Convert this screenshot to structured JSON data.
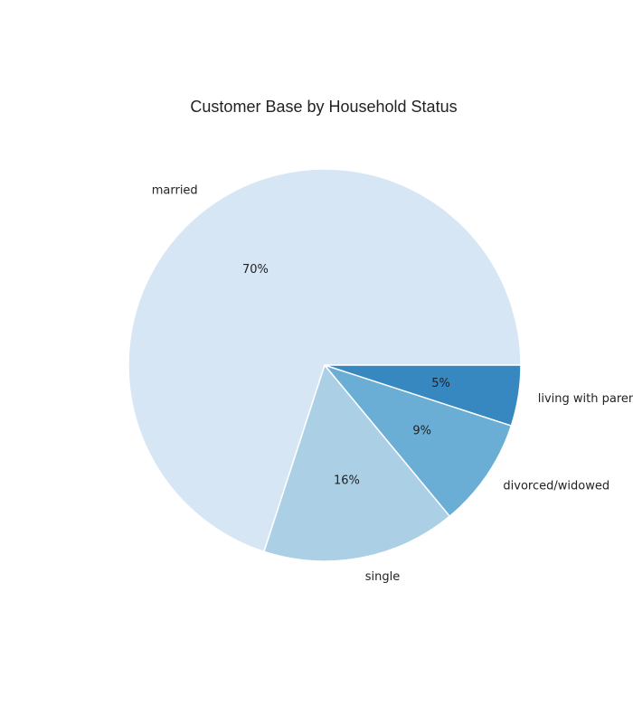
{
  "chart_data": {
    "type": "pie",
    "title": "Customer Base by Household Status",
    "categories": [
      "married",
      "single",
      "divorced/widowed",
      "living with parents"
    ],
    "values": [
      70,
      16,
      9,
      5
    ],
    "pct_labels": [
      "70%",
      "16%",
      "9%",
      "5%"
    ],
    "colors": [
      "#d6e6f4",
      "#abd0e6",
      "#6aaed6",
      "#3787c0"
    ],
    "start_angle": "0 degrees (3 o'clock)",
    "direction": "counterclockwise",
    "edge_color": "#ffffff"
  }
}
